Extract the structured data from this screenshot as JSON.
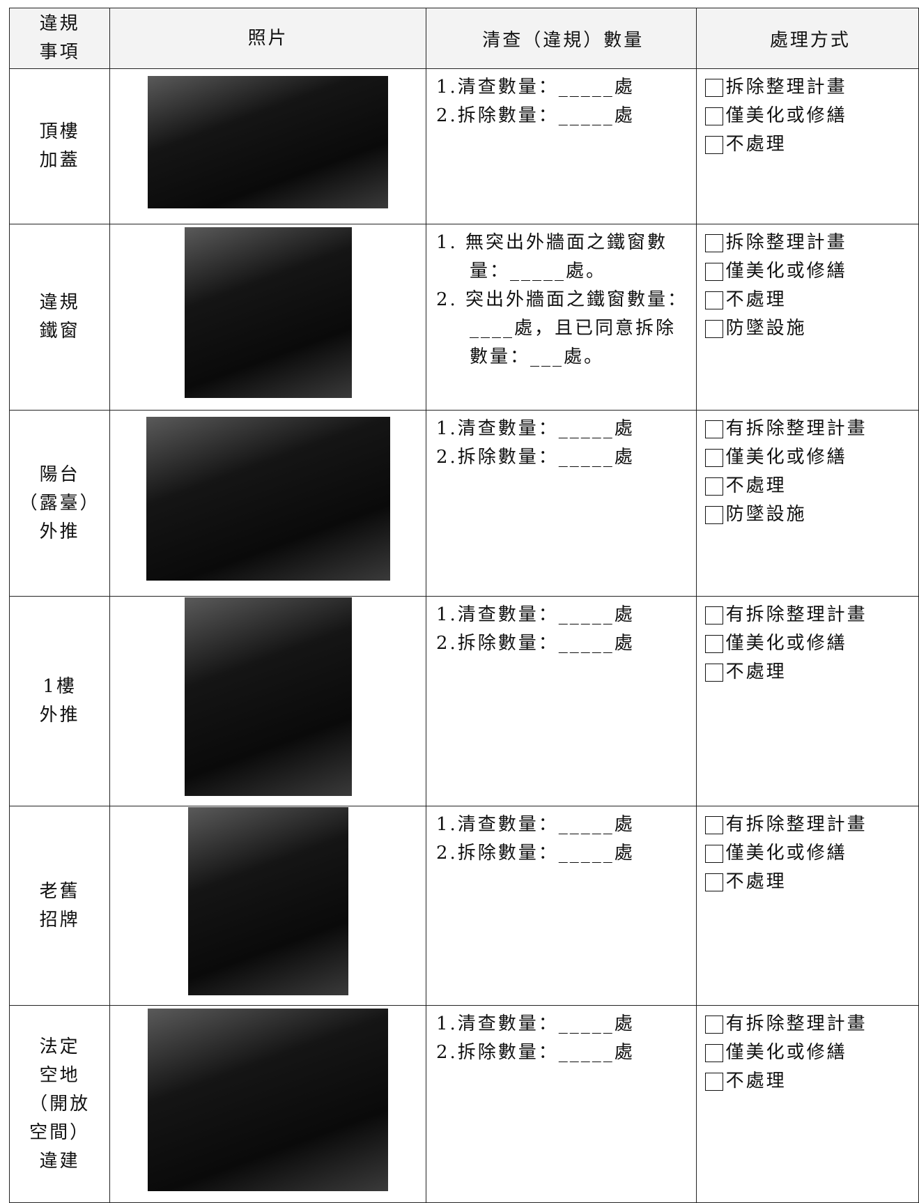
{
  "header": {
    "item_lines": [
      "違規",
      "事項"
    ],
    "photo": "照片",
    "quantity": "清查（違規）數量",
    "handling": "處理方式"
  },
  "rows": [
    {
      "item_lines": [
        "頂樓",
        "加蓋"
      ],
      "quantity": [
        "1.清查數量：_____處",
        "2.拆除數量：_____處"
      ],
      "options": [
        "拆除整理計畫",
        "僅美化或修繕",
        "不處理"
      ]
    },
    {
      "item_lines": [
        "違規",
        "鐵窗"
      ],
      "quantity": [
        "1.  無突出外牆面之鐵窗數量：_____處。",
        "2.  突出外牆面之鐵窗數量：____處，且已同意拆除數量：___處。"
      ],
      "options": [
        "拆除整理計畫",
        "僅美化或修繕",
        "不處理",
        "防墜設施"
      ]
    },
    {
      "item_lines": [
        "陽台",
        "（露臺）",
        "外推"
      ],
      "quantity": [
        "1.清查數量：_____處",
        "2.拆除數量：_____處"
      ],
      "options": [
        "有拆除整理計畫",
        "僅美化或修繕",
        "不處理",
        "防墜設施"
      ]
    },
    {
      "item_lines": [
        "1樓",
        "外推"
      ],
      "quantity": [
        "1.清查數量：_____處",
        "2.拆除數量：_____處"
      ],
      "options": [
        "有拆除整理計畫",
        "僅美化或修繕",
        "不處理"
      ]
    },
    {
      "item_lines": [
        "老舊",
        "招牌"
      ],
      "quantity": [
        "1.清查數量：_____處",
        "2.拆除數量：_____處"
      ],
      "options": [
        "有拆除整理計畫",
        "僅美化或修繕",
        "不處理"
      ]
    },
    {
      "item_lines": [
        "法定",
        "空地",
        "（開放",
        "空間）",
        "違建"
      ],
      "quantity": [
        "1.清查數量：_____處",
        "2.拆除數量：_____處"
      ],
      "options": [
        "有拆除整理計畫",
        "僅美化或修繕",
        "不處理"
      ]
    }
  ]
}
